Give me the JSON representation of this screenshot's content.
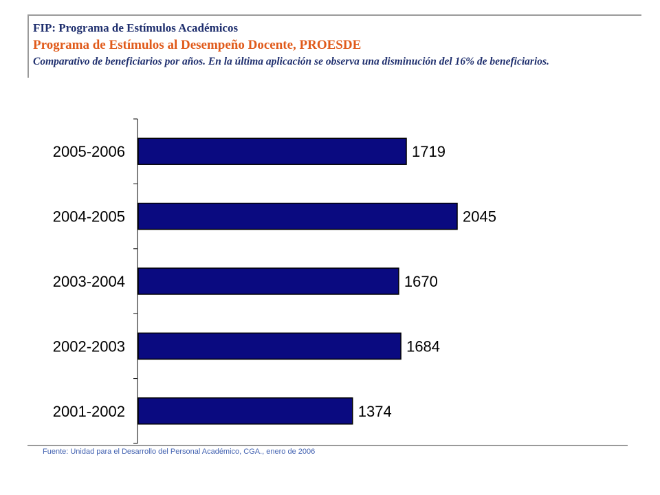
{
  "header": {
    "supertitle": "FIP: Programa de Estímulos Académicos",
    "title": "Programa de Estímulos al Desempeño Docente, PROESDE",
    "subtitle": "Comparativo de beneficiarios por años. En la última aplicación se observa una disminución del 16% de beneficiarios."
  },
  "source": "Fuente: Unidad para el Desarrollo del Personal Académico, CGA., enero de 2006",
  "colors": {
    "bar": "#0a0a80",
    "title": "#e05a1a",
    "supertitle": "#1f2f6e",
    "source": "#4060b0"
  },
  "chart_data": {
    "type": "bar",
    "orientation": "horizontal",
    "categories": [
      "2005-2006",
      "2004-2005",
      "2003-2004",
      "2002-2003",
      "2001-2002"
    ],
    "values": [
      1719,
      2045,
      1670,
      1684,
      1374
    ],
    "data_labels": [
      "1719",
      "2045",
      "1670",
      "1684",
      "1374"
    ],
    "xlim": [
      0,
      2045
    ],
    "grid": false,
    "legend": "none"
  }
}
